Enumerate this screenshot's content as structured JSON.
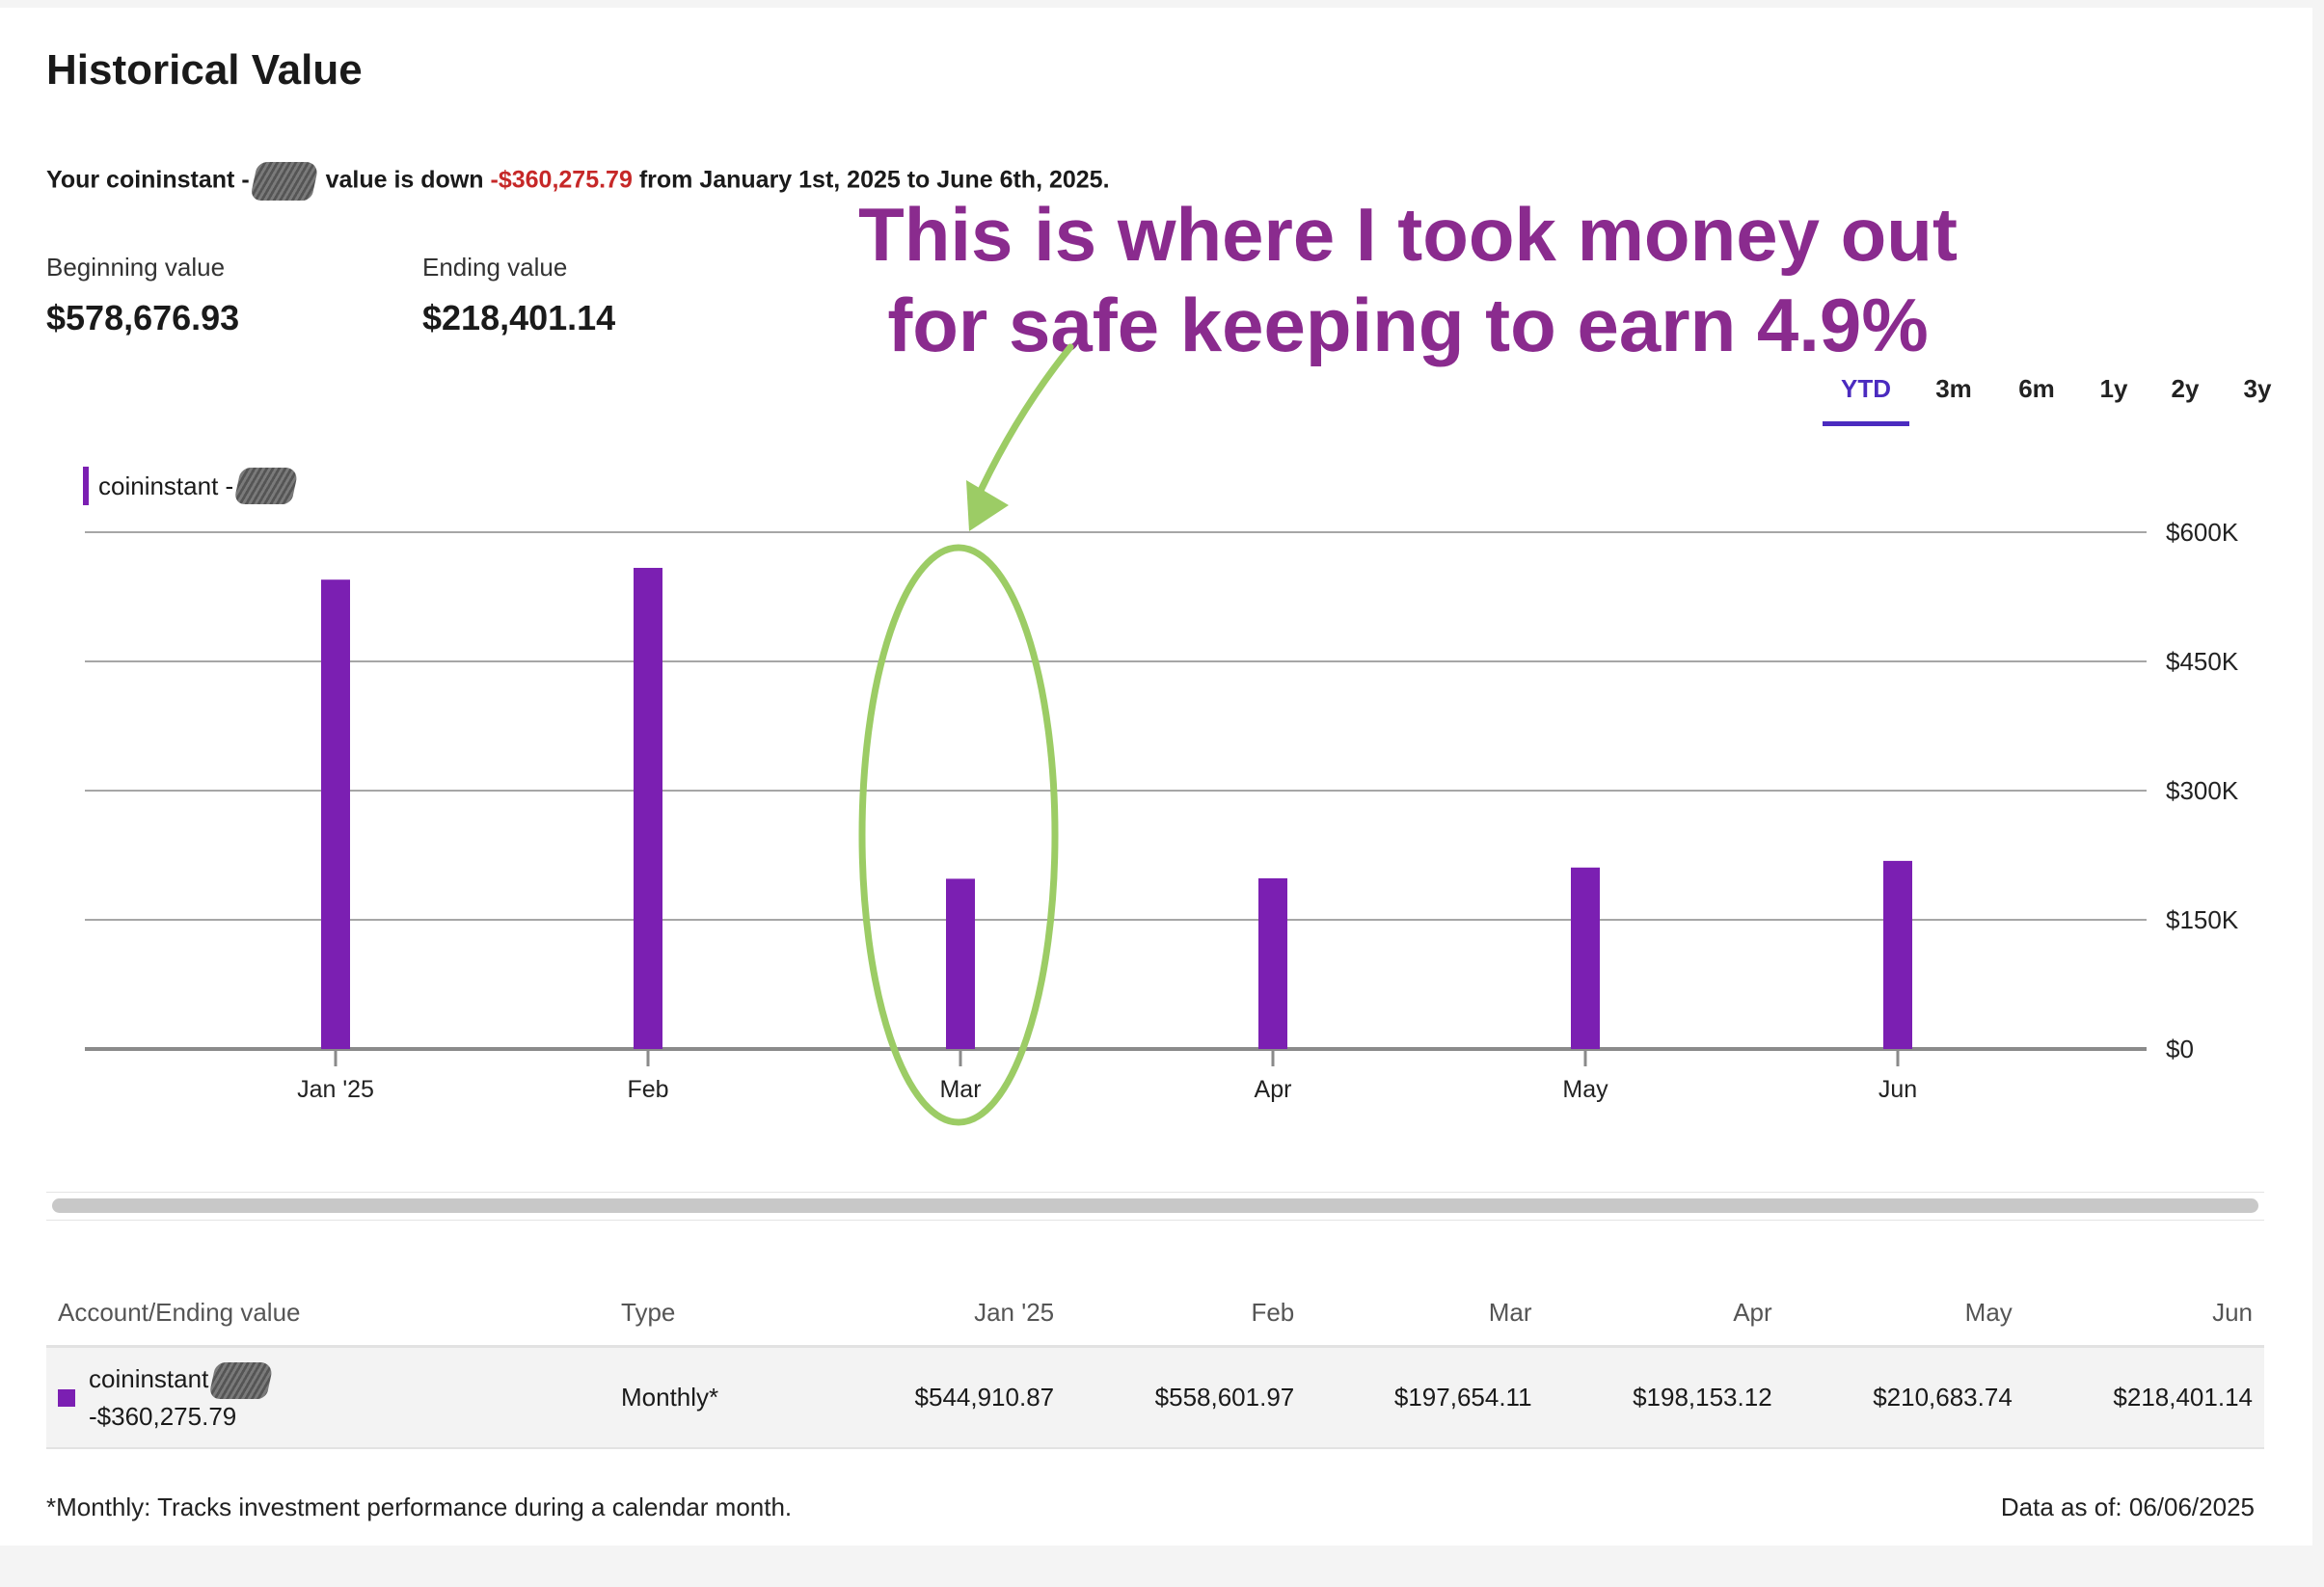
{
  "header": {
    "title": "Historical Value"
  },
  "summary": {
    "prefix": "Your coininstant -",
    "middle": "value is down",
    "change": "-$360,275.79",
    "suffix": "from January 1st, 2025 to June 6th, 2025."
  },
  "values": {
    "beginning_label": "Beginning value",
    "beginning_amount": "$578,676.93",
    "ending_label": "Ending value",
    "ending_amount": "$218,401.14"
  },
  "annotation": {
    "line1": "This is where I took money out",
    "line2": "for safe keeping to earn 4.9%"
  },
  "ranges": [
    "YTD",
    "3m",
    "6m",
    "1y",
    "2y",
    "3y"
  ],
  "active_range": "YTD",
  "legend": {
    "label": "coininstant -"
  },
  "colors": {
    "bar": "#7b1fb2",
    "annotation_text": "#8a2b8e",
    "annotation_mark": "#9ccc65",
    "negative": "#c62828",
    "active_tab": "#4b2bbf"
  },
  "chart_data": {
    "type": "bar",
    "categories": [
      "Jan '25",
      "Feb",
      "Mar",
      "Apr",
      "May",
      "Jun"
    ],
    "series": [
      {
        "name": "coininstant -",
        "values": [
          544910.87,
          558601.97,
          197654.11,
          198153.12,
          210683.74,
          218401.14
        ]
      }
    ],
    "y_ticks": [
      {
        "value": 0,
        "label": "$0"
      },
      {
        "value": 150000,
        "label": "$150K"
      },
      {
        "value": 300000,
        "label": "$300K"
      },
      {
        "value": 450000,
        "label": "$450K"
      },
      {
        "value": 600000,
        "label": "$600K"
      }
    ],
    "ylim": [
      0,
      600000
    ],
    "grid": true,
    "y_axis_position": "right",
    "highlighted_category": "Mar"
  },
  "table": {
    "headers": [
      "Account/Ending value",
      "Type",
      "Jan '25",
      "Feb",
      "Mar",
      "Apr",
      "May",
      "Jun"
    ],
    "row": {
      "account_name": "coininstant",
      "account_change": "-$360,275.79",
      "type": "Monthly*",
      "values": [
        "$544,910.87",
        "$558,601.97",
        "$197,654.11",
        "$198,153.12",
        "$210,683.74",
        "$218,401.14"
      ]
    }
  },
  "footer": {
    "footnote": "*Monthly: Tracks investment performance during a calendar month.",
    "as_of": "Data as of: 06/06/2025"
  }
}
